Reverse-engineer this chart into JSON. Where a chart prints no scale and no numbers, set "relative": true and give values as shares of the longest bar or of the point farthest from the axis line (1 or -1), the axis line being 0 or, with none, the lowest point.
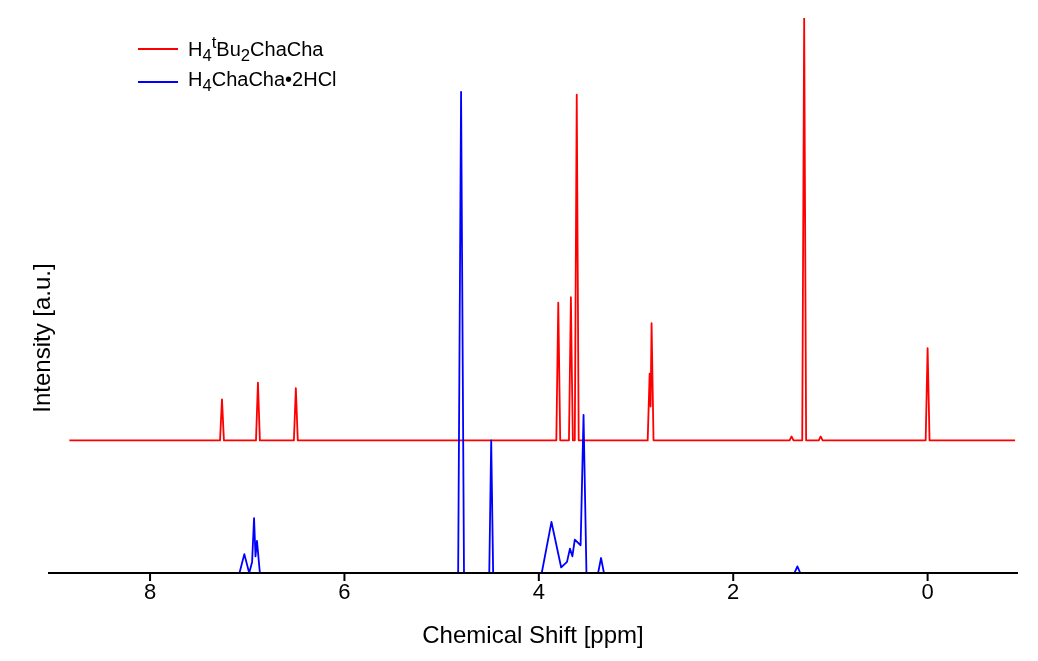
{
  "chart_data": {
    "type": "line",
    "relative": true,
    "xlabel": "Chemical Shift [ppm]",
    "ylabel": "Intensity [a.u.]",
    "xlim": [
      9.05,
      -0.93
    ],
    "xticks": [
      8,
      6,
      4,
      2,
      0
    ],
    "legend": "top left",
    "series": [
      {
        "name": "H$_{4}$$^{t}$Bu$_{2}$ChaCha",
        "color": "#ff0000",
        "x": [
          8.83,
          7.28,
          7.26,
          7.24,
          6.91,
          6.89,
          6.87,
          6.52,
          6.5,
          6.48,
          3.82,
          3.8,
          3.78,
          3.69,
          3.67,
          3.66,
          3.65,
          3.63,
          3.61,
          3.59,
          2.88,
          2.86,
          2.85,
          2.84,
          2.82,
          1.42,
          1.4,
          1.38,
          1.29,
          1.27,
          1.25,
          1.12,
          1.1,
          1.08,
          0.02,
          0.0,
          -0.02,
          -0.9
        ],
        "values": [
          0.239,
          0.239,
          0.313,
          0.239,
          0.239,
          0.343,
          0.239,
          0.239,
          0.333,
          0.239,
          0.239,
          0.487,
          0.239,
          0.239,
          0.497,
          0.36,
          0.239,
          0.239,
          0.862,
          0.239,
          0.239,
          0.359,
          0.3,
          0.45,
          0.239,
          0.239,
          0.246,
          0.239,
          0.239,
          1.0,
          0.239,
          0.239,
          0.246,
          0.239,
          0.239,
          0.405,
          0.239,
          0.239
        ]
      },
      {
        "name": "H$_{4}$ChaCha•2HCl",
        "color": "#0000ff",
        "x": [
          8.83,
          7.08,
          7.03,
          6.98,
          6.95,
          6.93,
          6.915,
          6.9,
          6.87,
          4.83,
          4.8,
          4.77,
          4.51,
          4.49,
          4.47,
          3.97,
          3.87,
          3.77,
          3.71,
          3.68,
          3.655,
          3.63,
          3.57,
          3.54,
          3.51,
          3.39,
          3.36,
          3.33,
          1.37,
          1.34,
          1.31,
          -0.9
        ],
        "values": [
          0,
          0,
          0.034,
          0,
          0.02,
          0.099,
          0.03,
          0.058,
          0,
          0,
          0.867,
          0,
          0,
          0.239,
          0,
          0,
          0.092,
          0.01,
          0.02,
          0.044,
          0.03,
          0.06,
          0.05,
          0.285,
          0,
          0,
          0.027,
          0,
          0,
          0.012,
          0,
          0
        ]
      }
    ]
  }
}
